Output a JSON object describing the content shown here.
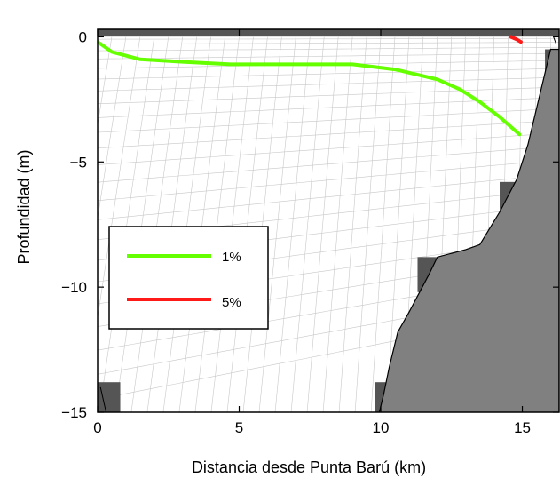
{
  "chart_data": {
    "type": "line",
    "xlabel": "Distancia desde Punta Barú (km)",
    "ylabel": "Profundidad (m)",
    "xlim": [
      0,
      16.3
    ],
    "ylim": [
      -15,
      0.3
    ],
    "xticks": [
      0,
      5,
      10,
      15
    ],
    "yticks": [
      0,
      -5,
      -10,
      -15
    ],
    "xtick_labels": [
      "0",
      "5",
      "10",
      "15"
    ],
    "ytick_labels": [
      "0",
      "−5",
      "−10",
      "−15"
    ],
    "grid": "curvilinear model grid (gray)",
    "legend_position": "left",
    "series": [
      {
        "name": "1%",
        "color": "#66ff00",
        "x": [
          0,
          0.5,
          1.5,
          3,
          4.7,
          6,
          7.5,
          9,
          10.5,
          12,
          12.8,
          13.5,
          14.2,
          14.9
        ],
        "y": [
          -0.2,
          -0.6,
          -0.9,
          -1.0,
          -1.1,
          -1.1,
          -1.1,
          -1.1,
          -1.3,
          -1.7,
          -2.1,
          -2.6,
          -3.2,
          -3.9
        ]
      },
      {
        "name": "5%",
        "color": "#ff1a1a",
        "x": [
          14.6,
          14.8,
          14.95
        ],
        "y": [
          0.0,
          -0.1,
          -0.2
        ]
      }
    ],
    "bathymetry": {
      "x": [
        9.95,
        10.1,
        10.3,
        10.6,
        11.0,
        11.7,
        12.0,
        13.0,
        13.5,
        14.2,
        14.8,
        15.2,
        16.0,
        16.3
      ],
      "y": [
        -15,
        -14.3,
        -13.2,
        -11.8,
        -11.0,
        -9.5,
        -8.8,
        -8.5,
        -8.3,
        -7.0,
        -5.7,
        -4.3,
        -0.5,
        -0.5
      ]
    },
    "bathymetry_color": "#808080",
    "land_cell_color": "#555555"
  }
}
